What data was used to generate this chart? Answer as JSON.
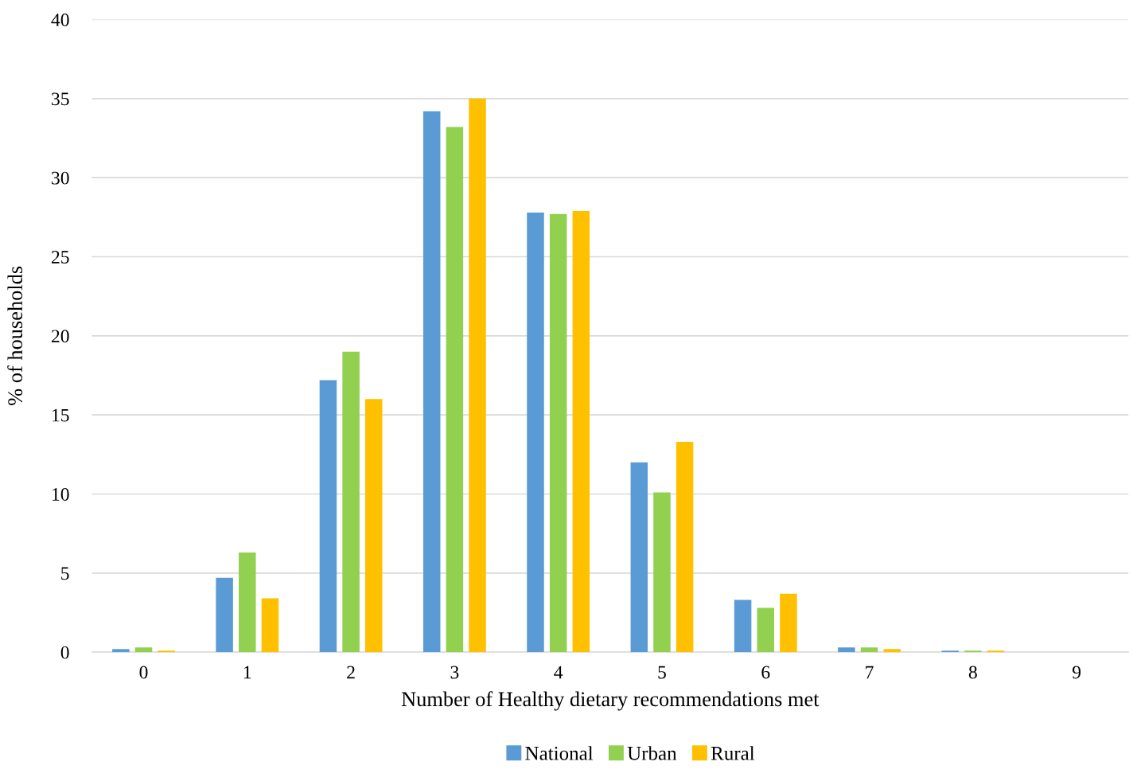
{
  "chart_data": {
    "type": "bar",
    "xlabel": "Number of Healthy dietary recommendations met",
    "ylabel": "% of households",
    "categories": [
      "0",
      "1",
      "2",
      "3",
      "4",
      "5",
      "6",
      "7",
      "8",
      "9"
    ],
    "series": [
      {
        "name": "National",
        "color": "#5b9bd5",
        "values": [
          0.2,
          4.7,
          17.2,
          34.2,
          27.8,
          12.0,
          3.3,
          0.3,
          0.1,
          0
        ]
      },
      {
        "name": "Urban",
        "color": "#92d050",
        "values": [
          0.3,
          6.3,
          19.0,
          33.2,
          27.7,
          10.1,
          2.8,
          0.3,
          0.1,
          0
        ]
      },
      {
        "name": "Rural",
        "color": "#ffc000",
        "values": [
          0.1,
          3.4,
          16.0,
          35.0,
          27.9,
          13.3,
          3.7,
          0.2,
          0.1,
          0
        ]
      }
    ],
    "ylim": [
      0,
      40
    ],
    "yticks": [
      0,
      5,
      10,
      15,
      20,
      25,
      30,
      35,
      40
    ],
    "grid": "y",
    "legend": "bottom"
  }
}
